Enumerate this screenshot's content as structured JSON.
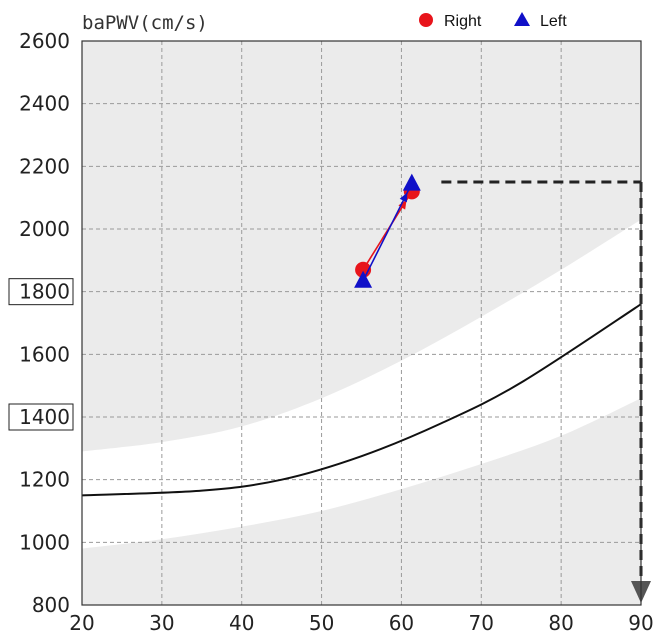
{
  "chart_data": {
    "type": "line",
    "ylabel": "baPWV(cm/s)",
    "xlabel": "",
    "xlim": [
      20,
      90
    ],
    "ylim": [
      800,
      2600
    ],
    "x_ticks": [
      "20",
      "30",
      "40",
      "50",
      "60",
      "70",
      "80",
      "90"
    ],
    "y_ticks": [
      "800",
      "1000",
      "1200",
      "1400",
      "1600",
      "1800",
      "2000",
      "2200",
      "2400",
      "2600"
    ],
    "boxed_y_ticks": [
      "1400",
      "1800"
    ],
    "grid": true,
    "legend_position": "top-right",
    "legend": [
      {
        "label": "Right",
        "color": "#e8141b",
        "marker": "circle"
      },
      {
        "label": "Left",
        "color": "#1010c8",
        "marker": "triangle"
      }
    ],
    "reference_curve": {
      "x": [
        20,
        35,
        45,
        55,
        65,
        75,
        90
      ],
      "y": [
        1150,
        1165,
        1200,
        1275,
        1380,
        1510,
        1760
      ]
    },
    "normal_band": {
      "x": [
        20,
        30,
        40,
        50,
        60,
        70,
        80,
        90
      ],
      "lower": [
        980,
        1010,
        1050,
        1100,
        1170,
        1250,
        1340,
        1460
      ],
      "upper": [
        1290,
        1320,
        1370,
        1460,
        1580,
        1720,
        1870,
        2030
      ]
    },
    "series": [
      {
        "name": "Right",
        "color": "#e8141b",
        "marker": "circle",
        "x": [
          55.2,
          61.3
        ],
        "y": [
          1870,
          2120
        ]
      },
      {
        "name": "Left",
        "color": "#1010c8",
        "marker": "triangle",
        "x": [
          55.2,
          61.3
        ],
        "y": [
          1835,
          2145
        ]
      }
    ],
    "projection": {
      "x_from": 65,
      "x_to": 90,
      "y": 2150,
      "arrow_to_y": 800,
      "color": "#222222"
    },
    "colors": {
      "plot_background": "#ebebeb",
      "band": "#ffffff",
      "grid": "#9a9a9a",
      "curve": "#111111"
    }
  }
}
